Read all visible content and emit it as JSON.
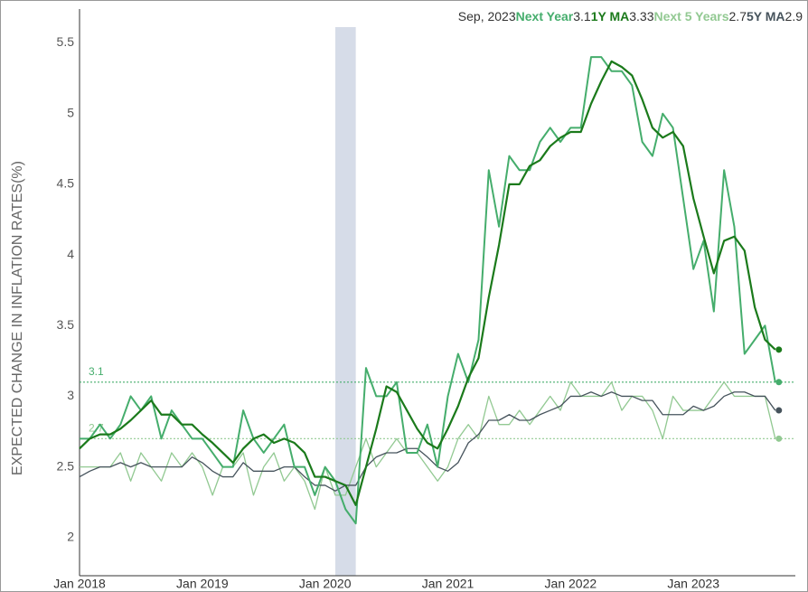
{
  "chart_data": {
    "type": "line",
    "y_label": "EXPECTED CHANGE IN INFLATION RATES(%)",
    "header_date": "Sep, 2023",
    "categories": [
      "Jan 2018",
      null,
      null,
      null,
      null,
      null,
      null,
      null,
      null,
      null,
      null,
      null,
      "Jan 2019",
      null,
      null,
      null,
      null,
      null,
      null,
      null,
      null,
      null,
      null,
      null,
      "Jan 2020",
      null,
      null,
      null,
      null,
      null,
      null,
      null,
      null,
      null,
      null,
      null,
      "Jan 2021",
      null,
      null,
      null,
      null,
      null,
      null,
      null,
      null,
      null,
      null,
      null,
      "Jan 2022",
      null,
      null,
      null,
      null,
      null,
      null,
      null,
      null,
      null,
      null,
      null,
      "Jan 2023",
      null,
      null,
      null,
      null,
      null,
      null,
      null,
      null
    ],
    "series": [
      {
        "name": "Next Year",
        "color": "#45ad6c",
        "width": 2,
        "values": [
          2.7,
          2.7,
          2.8,
          2.7,
          2.8,
          3.0,
          2.9,
          3.0,
          2.7,
          2.9,
          2.8,
          2.7,
          2.7,
          2.6,
          2.5,
          2.5,
          2.9,
          2.7,
          2.6,
          2.7,
          2.8,
          2.5,
          2.5,
          2.3,
          2.5,
          2.4,
          2.2,
          2.1,
          3.2,
          3.0,
          3.0,
          3.1,
          2.6,
          2.6,
          2.8,
          2.5,
          3.0,
          3.3,
          3.1,
          3.4,
          4.6,
          4.2,
          4.7,
          4.6,
          4.6,
          4.8,
          4.9,
          4.8,
          4.9,
          4.9,
          5.4,
          5.4,
          5.3,
          5.3,
          5.2,
          4.8,
          4.7,
          5.0,
          4.9,
          4.4,
          3.9,
          4.1,
          3.6,
          4.6,
          4.2,
          3.3,
          3.4,
          3.5,
          3.1
        ]
      },
      {
        "name": "1Y MA",
        "color": "#1b7a1b",
        "width": 2.2,
        "values": [
          2.63,
          2.7,
          2.73,
          2.73,
          2.77,
          2.83,
          2.9,
          2.97,
          2.87,
          2.87,
          2.8,
          2.8,
          2.73,
          2.67,
          2.6,
          2.53,
          2.63,
          2.7,
          2.73,
          2.67,
          2.7,
          2.67,
          2.6,
          2.43,
          2.43,
          2.4,
          2.37,
          2.23,
          2.5,
          2.77,
          3.07,
          3.03,
          2.9,
          2.77,
          2.67,
          2.63,
          2.77,
          2.93,
          3.13,
          3.27,
          3.7,
          4.07,
          4.5,
          4.5,
          4.63,
          4.67,
          4.77,
          4.83,
          4.87,
          4.87,
          5.07,
          5.23,
          5.37,
          5.33,
          5.27,
          5.1,
          4.9,
          4.83,
          4.87,
          4.77,
          4.4,
          4.13,
          3.87,
          4.1,
          4.13,
          4.03,
          3.63,
          3.4,
          3.33
        ]
      },
      {
        "name": "Next 5 Years",
        "color": "#92c992",
        "width": 1.3,
        "values": [
          2.5,
          2.5,
          2.5,
          2.5,
          2.6,
          2.4,
          2.6,
          2.5,
          2.4,
          2.6,
          2.5,
          2.6,
          2.5,
          2.3,
          2.5,
          2.5,
          2.6,
          2.3,
          2.5,
          2.6,
          2.4,
          2.5,
          2.4,
          2.2,
          2.5,
          2.3,
          2.3,
          2.5,
          2.7,
          2.5,
          2.6,
          2.7,
          2.6,
          2.6,
          2.5,
          2.4,
          2.5,
          2.7,
          2.8,
          2.7,
          3.0,
          2.8,
          2.8,
          2.9,
          2.8,
          2.9,
          3.0,
          2.9,
          3.1,
          3.0,
          3.0,
          3.0,
          3.1,
          2.9,
          3.0,
          3.0,
          2.9,
          2.7,
          3.0,
          2.9,
          2.9,
          2.9,
          3.0,
          3.1,
          3.0,
          3.0,
          3.0,
          3.0,
          2.7
        ]
      },
      {
        "name": "5Y MA",
        "color": "#46535c",
        "width": 1.3,
        "values": [
          2.43,
          2.47,
          2.5,
          2.5,
          2.53,
          2.5,
          2.53,
          2.5,
          2.5,
          2.5,
          2.5,
          2.57,
          2.53,
          2.47,
          2.43,
          2.43,
          2.53,
          2.47,
          2.47,
          2.47,
          2.5,
          2.5,
          2.43,
          2.37,
          2.37,
          2.33,
          2.37,
          2.37,
          2.5,
          2.57,
          2.6,
          2.6,
          2.63,
          2.63,
          2.57,
          2.5,
          2.47,
          2.53,
          2.67,
          2.73,
          2.83,
          2.83,
          2.87,
          2.83,
          2.83,
          2.87,
          2.9,
          2.93,
          3.0,
          3.0,
          3.03,
          3.0,
          3.03,
          3.0,
          3.0,
          2.97,
          2.97,
          2.87,
          2.87,
          2.87,
          2.93,
          2.9,
          2.93,
          3.0,
          3.03,
          3.03,
          3.0,
          3.0,
          2.9
        ]
      }
    ],
    "reference_lines": [
      {
        "value": 3.1,
        "color": "#45ad6c"
      },
      {
        "value": 2.7,
        "color": "#92c992"
      }
    ],
    "shaded_span": [
      25,
      27
    ],
    "shade_color": "#d6dce8",
    "ylim": [
      1.73,
      5.74
    ],
    "yticks": [
      2,
      2.5,
      3,
      3.5,
      4,
      4.5,
      5,
      5.5
    ],
    "grid": false
  }
}
